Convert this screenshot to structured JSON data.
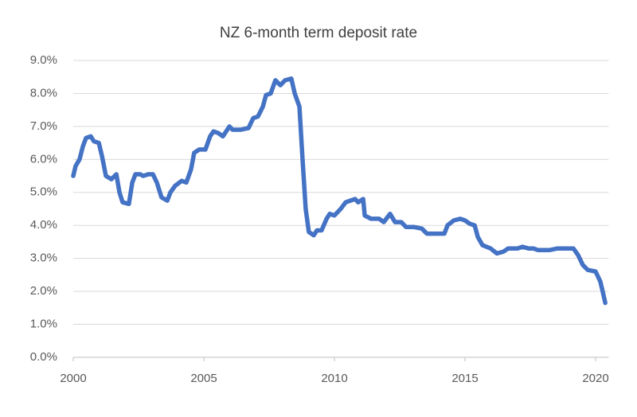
{
  "chart_data": {
    "type": "line",
    "title": "NZ 6-month term deposit rate",
    "x": [
      2000.0,
      2000.09,
      2000.24,
      2000.37,
      2000.49,
      2000.67,
      2000.79,
      2000.98,
      2001.1,
      2001.25,
      2001.46,
      2001.65,
      2001.77,
      2001.89,
      2002.13,
      2002.26,
      2002.38,
      2002.56,
      2002.68,
      2002.87,
      2003.05,
      2003.2,
      2003.38,
      2003.6,
      2003.72,
      2003.9,
      2004.15,
      2004.33,
      2004.51,
      2004.63,
      2004.82,
      2005.06,
      2005.24,
      2005.37,
      2005.55,
      2005.73,
      2005.98,
      2006.1,
      2006.4,
      2006.71,
      2006.89,
      2007.07,
      2007.26,
      2007.38,
      2007.56,
      2007.74,
      2007.93,
      2008.11,
      2008.35,
      2008.48,
      2008.66,
      2008.78,
      2008.9,
      2009.02,
      2009.21,
      2009.33,
      2009.51,
      2009.7,
      2009.82,
      2010.0,
      2010.24,
      2010.43,
      2010.61,
      2010.79,
      2010.91,
      2011.1,
      2011.16,
      2011.4,
      2011.71,
      2011.89,
      2012.13,
      2012.32,
      2012.56,
      2012.74,
      2013.05,
      2013.35,
      2013.54,
      2013.9,
      2014.21,
      2014.33,
      2014.57,
      2014.82,
      2015.0,
      2015.18,
      2015.37,
      2015.49,
      2015.67,
      2015.98,
      2016.22,
      2016.46,
      2016.65,
      2017.01,
      2017.2,
      2017.44,
      2017.62,
      2017.8,
      2018.23,
      2018.54,
      2019.15,
      2019.33,
      2019.51,
      2019.7,
      2020.0,
      2020.18,
      2020.3,
      2020.37
    ],
    "series": [
      {
        "name": "6-month term deposit rate",
        "color": "#4472c4",
        "values": [
          5.5,
          5.8,
          6.0,
          6.4,
          6.65,
          6.7,
          6.55,
          6.5,
          6.1,
          5.5,
          5.4,
          5.55,
          5.0,
          4.7,
          4.65,
          5.3,
          5.55,
          5.55,
          5.5,
          5.55,
          5.55,
          5.3,
          4.85,
          4.75,
          5.0,
          5.2,
          5.35,
          5.3,
          5.7,
          6.2,
          6.3,
          6.3,
          6.7,
          6.85,
          6.8,
          6.7,
          7.0,
          6.9,
          6.9,
          6.95,
          7.25,
          7.3,
          7.6,
          7.95,
          8.0,
          8.4,
          8.25,
          8.4,
          8.45,
          8.0,
          7.6,
          6.0,
          4.5,
          3.8,
          3.7,
          3.85,
          3.85,
          4.2,
          4.35,
          4.3,
          4.5,
          4.7,
          4.75,
          4.8,
          4.7,
          4.8,
          4.3,
          4.2,
          4.2,
          4.1,
          4.35,
          4.1,
          4.1,
          3.95,
          3.95,
          3.9,
          3.75,
          3.75,
          3.75,
          4.0,
          4.15,
          4.2,
          4.15,
          4.05,
          4.0,
          3.65,
          3.4,
          3.3,
          3.15,
          3.2,
          3.3,
          3.3,
          3.35,
          3.3,
          3.3,
          3.25,
          3.25,
          3.3,
          3.3,
          3.1,
          2.8,
          2.65,
          2.6,
          2.3,
          1.9,
          1.65
        ]
      }
    ],
    "xlim": [
      2000,
      2020.5
    ],
    "xticks": [
      2000,
      2005,
      2010,
      2015,
      2020
    ],
    "ylim": [
      0,
      9
    ],
    "yticks": [
      {
        "value": 0,
        "label": "0.0%"
      },
      {
        "value": 1,
        "label": "1.0%"
      },
      {
        "value": 2,
        "label": "2.0%"
      },
      {
        "value": 3,
        "label": "3.0%"
      },
      {
        "value": 4,
        "label": "4.0%"
      },
      {
        "value": 5,
        "label": "5.0%"
      },
      {
        "value": 6,
        "label": "6.0%"
      },
      {
        "value": 7,
        "label": "7.0%"
      },
      {
        "value": 8,
        "label": "8.0%"
      },
      {
        "value": 9,
        "label": "9.0%"
      }
    ],
    "grid": true
  }
}
